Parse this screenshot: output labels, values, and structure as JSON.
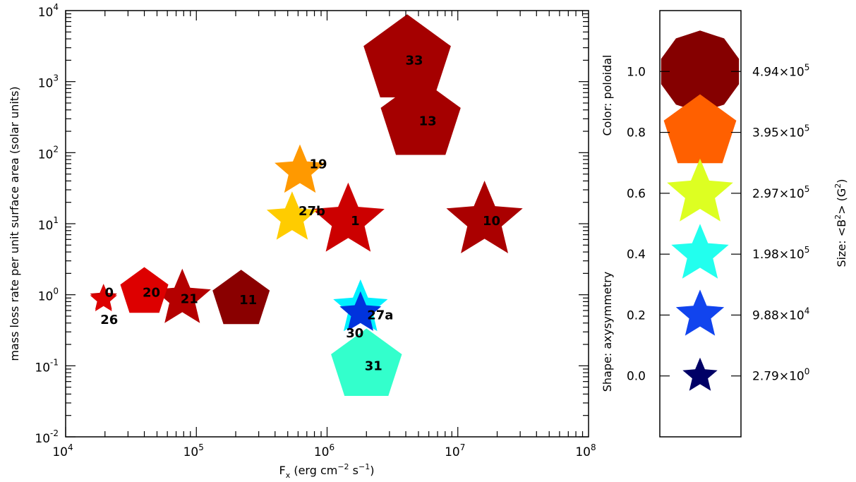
{
  "chart_data": [
    {
      "type": "scatter",
      "xlabel": "F_x (erg cm^-2 s^-1)",
      "ylabel": "mass loss rate per unit surface area (solar units)",
      "xscale": "log",
      "yscale": "log",
      "xlim": [
        10000,
        100000000
      ],
      "ylim": [
        0.01,
        10000
      ],
      "x_ticks": [
        {
          "value": 10000,
          "base": "10",
          "exp": "4"
        },
        {
          "value": 100000,
          "base": "10",
          "exp": "5"
        },
        {
          "value": 1000000,
          "base": "10",
          "exp": "6"
        },
        {
          "value": 10000000,
          "base": "10",
          "exp": "7"
        },
        {
          "value": 100000000,
          "base": "10",
          "exp": "8"
        }
      ],
      "y_ticks": [
        {
          "value": 0.01,
          "base": "10",
          "exp": "-2"
        },
        {
          "value": 0.1,
          "base": "10",
          "exp": "-1"
        },
        {
          "value": 1,
          "base": "10",
          "exp": "0"
        },
        {
          "value": 10,
          "base": "10",
          "exp": "1"
        },
        {
          "value": 100,
          "base": "10",
          "exp": "2"
        },
        {
          "value": 1000,
          "base": "10",
          "exp": "3"
        },
        {
          "value": 10000,
          "base": "10",
          "exp": "4"
        }
      ],
      "grid": false,
      "points": [
        {
          "label": "0",
          "x": 19500,
          "y": 0.9,
          "color": "#cc0000",
          "sides": 5,
          "star": true,
          "size": 0.12
        },
        {
          "label": "26",
          "x": 19500,
          "y": 0.85,
          "color": "#dd0000",
          "sides": 5,
          "star": true,
          "size": 0.12
        },
        {
          "label": "20",
          "x": 40000,
          "y": 1.08,
          "color": "#dd0000",
          "sides": 5,
          "star": false,
          "size": 0.35
        },
        {
          "label": "21",
          "x": 78000,
          "y": 0.88,
          "color": "#b40000",
          "sides": 5,
          "star": true,
          "size": 0.45
        },
        {
          "label": "11",
          "x": 220000,
          "y": 0.85,
          "color": "#8a0000",
          "sides": 5,
          "star": false,
          "size": 0.45
        },
        {
          "label": "19",
          "x": 620000,
          "y": 55,
          "color": "#ff9900",
          "sides": 5,
          "star": true,
          "size": 0.38
        },
        {
          "label": "27b",
          "x": 540000,
          "y": 12,
          "color": "#ffcc00",
          "sides": 5,
          "star": true,
          "size": 0.38
        },
        {
          "label": "1",
          "x": 1450000,
          "y": 11,
          "color": "#cc0000",
          "sides": 5,
          "star": true,
          "size": 0.62
        },
        {
          "label": "10",
          "x": 16000000,
          "y": 11,
          "color": "#aa0000",
          "sides": 5,
          "star": true,
          "size": 0.66
        },
        {
          "label": "33",
          "x": 4100000,
          "y": 2000,
          "color": "#a50000",
          "sides": 5,
          "star": false,
          "size": 0.78
        },
        {
          "label": "13",
          "x": 5200000,
          "y": 280,
          "color": "#a50000",
          "sides": 5,
          "star": false,
          "size": 0.7
        },
        {
          "label": "30",
          "x": 1800000,
          "y": 0.55,
          "color": "#0033dd",
          "sides": 5,
          "star": true,
          "size": 0.28
        },
        {
          "label": "27a",
          "x": 1800000,
          "y": 0.65,
          "color": "#00f0ff",
          "sides": 5,
          "star": true,
          "size": 0.42
        },
        {
          "label": "31",
          "x": 2000000,
          "y": 0.1,
          "color": "#33ffcc",
          "sides": 5,
          "star": false,
          "size": 0.6
        }
      ]
    },
    {
      "type": "legend-scale",
      "left_axis_label": "Color: poloidal",
      "left_axis_label_2": "Shape: axysymmetry",
      "right_axis_label": "Size: <B^2> (G^2)",
      "ylim": [
        -0.2,
        1.2
      ],
      "y_ticks": [
        "1.0",
        "0.8",
        "0.6",
        "0.4",
        "0.2",
        "0.0"
      ],
      "tick_values": [
        1.0,
        0.8,
        0.6,
        0.4,
        0.2,
        0.0
      ],
      "markers": [
        {
          "value": 1.0,
          "size_mantissa": "4.94",
          "size_exp": "5",
          "color": "#850000",
          "sides": 10,
          "star": false,
          "scale": 1.0
        },
        {
          "value": 0.8,
          "size_mantissa": "3.95",
          "size_exp": "5",
          "color": "#ff6000",
          "sides": 5,
          "star": false,
          "scale": 0.9
        },
        {
          "value": 0.6,
          "size_mantissa": "2.97",
          "size_exp": "5",
          "color": "#ddff22",
          "sides": 5,
          "star": true,
          "scale": 0.78
        },
        {
          "value": 0.4,
          "size_mantissa": "1.98",
          "size_exp": "5",
          "color": "#22ffee",
          "sides": 5,
          "star": true,
          "scale": 0.62
        },
        {
          "value": 0.2,
          "size_mantissa": "9.88",
          "size_exp": "4",
          "color": "#1144ee",
          "sides": 5,
          "star": true,
          "scale": 0.45
        },
        {
          "value": 0.0,
          "size_mantissa": "2.79",
          "size_exp": "0",
          "color": "#000066",
          "sides": 5,
          "star": true,
          "scale": 0.2
        }
      ]
    }
  ]
}
